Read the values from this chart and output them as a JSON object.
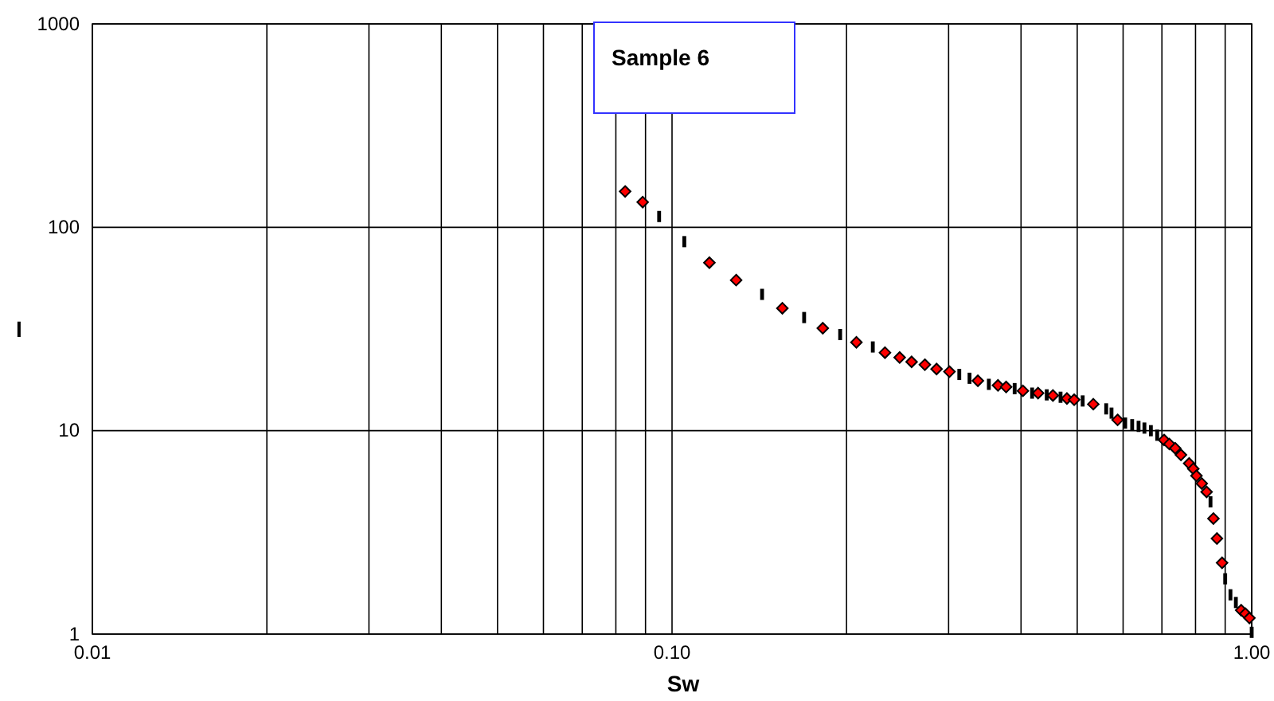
{
  "chart_data": {
    "type": "scatter",
    "xlabel": "Sw",
    "ylabel": "I",
    "log": "xy",
    "grid": true,
    "xlim": [
      0.01,
      1
    ],
    "ylim": [
      1,
      1000
    ],
    "xticks": [
      {
        "value": 0.01,
        "label": "0.01"
      },
      {
        "value": 0.02,
        "label": null
      },
      {
        "value": 0.03,
        "label": null
      },
      {
        "value": 0.04,
        "label": null
      },
      {
        "value": 0.05,
        "label": null
      },
      {
        "value": 0.06,
        "label": null
      },
      {
        "value": 0.07,
        "label": null
      },
      {
        "value": 0.08,
        "label": null
      },
      {
        "value": 0.09,
        "label": null
      },
      {
        "value": 0.1,
        "label": "0.10"
      },
      {
        "value": 0.2,
        "label": null
      },
      {
        "value": 0.3,
        "label": null
      },
      {
        "value": 0.4,
        "label": null
      },
      {
        "value": 0.5,
        "label": null
      },
      {
        "value": 0.6,
        "label": null
      },
      {
        "value": 0.7,
        "label": null
      },
      {
        "value": 0.8,
        "label": null
      },
      {
        "value": 0.9,
        "label": null
      },
      {
        "value": 1,
        "label": "1.00"
      }
    ],
    "yticks": [
      1,
      10,
      100,
      1000
    ],
    "annotations": [
      "Sample 6"
    ],
    "series": [
      {
        "color": "#ff0000",
        "marker": "diamond",
        "x": [
          0.083,
          0.089,
          0.116,
          0.129,
          0.155,
          0.182,
          0.208,
          0.233,
          0.247,
          0.259,
          0.273,
          0.286,
          0.301,
          0.337,
          0.365,
          0.377,
          0.403,
          0.428,
          0.454,
          0.48,
          0.494,
          0.533,
          0.587,
          0.706,
          0.721,
          0.738,
          0.755,
          0.78,
          0.793,
          0.803,
          0.82,
          0.836,
          0.859,
          0.871,
          0.889,
          0.959,
          0.975,
          0.991
        ],
        "values": [
          150,
          133,
          67,
          55,
          40,
          31.9,
          27.2,
          24.2,
          22.9,
          21.8,
          21.1,
          20.1,
          19.5,
          17.6,
          16.7,
          16.4,
          15.7,
          15.3,
          14.9,
          14.4,
          14.2,
          13.5,
          11.3,
          9.0,
          8.6,
          8.2,
          7.6,
          6.9,
          6.5,
          6.0,
          5.5,
          5.0,
          3.7,
          2.95,
          2.24,
          1.31,
          1.26,
          1.2
        ]
      },
      {
        "color": "#000000",
        "marker": "square",
        "x": [
          0.095,
          0.105,
          0.143,
          0.169,
          0.195,
          0.222,
          0.313,
          0.326,
          0.352,
          0.39,
          0.418,
          0.443,
          0.468,
          0.511,
          0.561,
          0.573,
          0.605,
          0.622,
          0.638,
          0.653,
          0.67,
          0.687,
          0.849,
          0.9,
          0.919,
          0.939,
          1.0
        ],
        "values": [
          113,
          85,
          46.8,
          36,
          29.7,
          25.8,
          18.9,
          18.1,
          16.9,
          16.1,
          15.3,
          15.0,
          14.6,
          14.0,
          12.8,
          12.2,
          10.9,
          10.7,
          10.5,
          10.3,
          10.0,
          9.5,
          4.47,
          1.87,
          1.56,
          1.43,
          1.02
        ]
      }
    ]
  }
}
